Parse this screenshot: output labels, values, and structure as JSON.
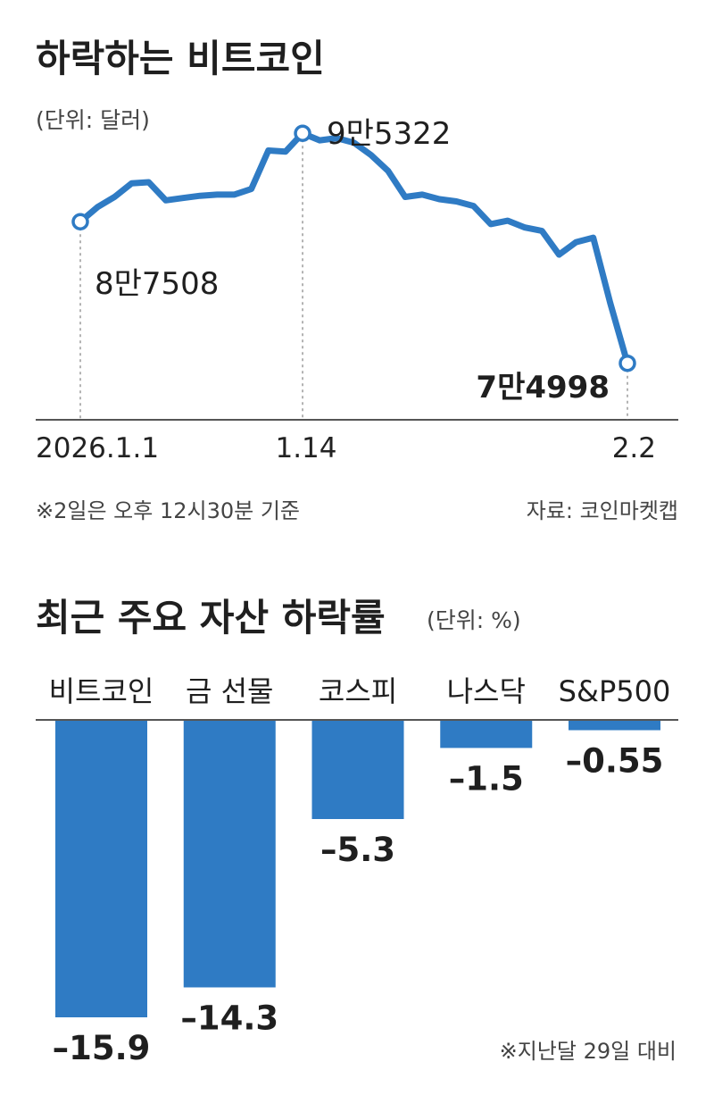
{
  "chart_data": [
    {
      "type": "line",
      "title": "하락하는 비트코인",
      "unit_label": "(단위: 달러)",
      "x_ticks": [
        "2026.1.1",
        "1.14",
        "2.2"
      ],
      "ylim": [
        70000,
        100000
      ],
      "color": "#2f7bc4",
      "series": [
        {
          "x": [
            "2026-01-01",
            "2026-01-02",
            "2026-01-03",
            "2026-01-04",
            "2026-01-05",
            "2026-01-06",
            "2026-01-07",
            "2026-01-08",
            "2026-01-09",
            "2026-01-10",
            "2026-01-11",
            "2026-01-12",
            "2026-01-13",
            "2026-01-14",
            "2026-01-15",
            "2026-01-16",
            "2026-01-17",
            "2026-01-18",
            "2026-01-19",
            "2026-01-20",
            "2026-01-21",
            "2026-01-22",
            "2026-01-23",
            "2026-01-24",
            "2026-01-25",
            "2026-01-26",
            "2026-01-27",
            "2026-01-28",
            "2026-01-29",
            "2026-01-30",
            "2026-01-31",
            "2026-02-01",
            "2026-02-02"
          ],
          "values": [
            87508,
            88800,
            89700,
            90900,
            91000,
            89400,
            89600,
            89800,
            89900,
            89900,
            90400,
            93800,
            93700,
            95322,
            94700,
            94900,
            94500,
            93400,
            92000,
            89700,
            89900,
            89500,
            89300,
            88900,
            87300,
            87600,
            87000,
            86700,
            84600,
            85700,
            86100,
            80300,
            74998
          ]
        }
      ],
      "annotations": [
        {
          "x": "2026-01-01",
          "value": 87508,
          "label": "8만7508"
        },
        {
          "x": "2026-01-14",
          "value": 95322,
          "label": "9만5322"
        },
        {
          "x": "2026-02-02",
          "value": 74998,
          "label": "7만4998"
        }
      ],
      "footnote": "※2일은 오후 12시30분 기준",
      "source": "자료: 코인마켓캡"
    },
    {
      "type": "bar",
      "title": "최근 주요 자산 하락률",
      "unit_label": "(단위: %)",
      "categories": [
        "비트코인",
        "금 선물",
        "코스피",
        "나스닥",
        "S&P500"
      ],
      "values": [
        -15.9,
        -14.3,
        -5.3,
        -1.5,
        -0.55
      ],
      "value_labels": [
        "–15.9",
        "–14.3",
        "–5.3",
        "–1.5",
        "–0.55"
      ],
      "color": "#2f7bc4",
      "footnote": "※지난달 29일 대비"
    }
  ]
}
